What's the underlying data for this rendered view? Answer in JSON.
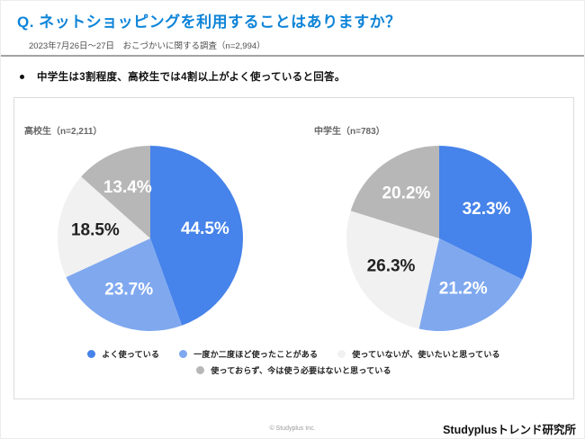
{
  "page": {
    "title": "Q. ネットショッピングを利用することはありますか？",
    "subtitle": "2023年7月26日～27日　おこづかいに関する調査（n=2,994）",
    "bullet": "中学生は3割程度、高校生では4割以上がよく使っていると回答。",
    "footer_copyright": "© Studyplus Inc.",
    "footer_brand": "Studyplusトレンド研究所"
  },
  "colors": {
    "title_blue": "#0e84d8",
    "slice_colors": [
      "#4683ea",
      "#7fa8ef",
      "#f1f1f1",
      "#b7b7b7"
    ],
    "slice_label_colors": [
      "#ffffff",
      "#ffffff",
      "#212121",
      "#ffffff"
    ]
  },
  "legend": {
    "items": [
      {
        "label": "よく使っている",
        "color": "#4683ea"
      },
      {
        "label": "一度か二度ほど使ったことがある",
        "color": "#7fa8ef"
      },
      {
        "label": "使っていないが、使いたいと思っている",
        "color": "#f1f1f1"
      },
      {
        "label": "使っておらず、今は使う必要はないと思っている",
        "color": "#b7b7b7"
      }
    ]
  },
  "chart_data": [
    {
      "type": "pie",
      "title": "高校生（n=2,211）",
      "categories": [
        "よく使っている",
        "一度か二度ほど使ったことがある",
        "使っていないが、使いたいと思っている",
        "使っておらず、今は使う必要はないと思っている"
      ],
      "values": [
        44.5,
        23.7,
        18.5,
        13.4
      ],
      "unit": "%",
      "start_angle_deg_from_top": 0,
      "direction": "clockwise",
      "legend_position": "bottom"
    },
    {
      "type": "pie",
      "title": "中学生（n=783）",
      "categories": [
        "よく使っている",
        "一度か二度ほど使ったことがある",
        "使っていないが、使いたいと思っている",
        "使っておらず、今は使う必要はないと思っている"
      ],
      "values": [
        32.3,
        21.2,
        26.3,
        20.2
      ],
      "unit": "%",
      "start_angle_deg_from_top": 0,
      "direction": "clockwise",
      "legend_position": "bottom"
    }
  ]
}
